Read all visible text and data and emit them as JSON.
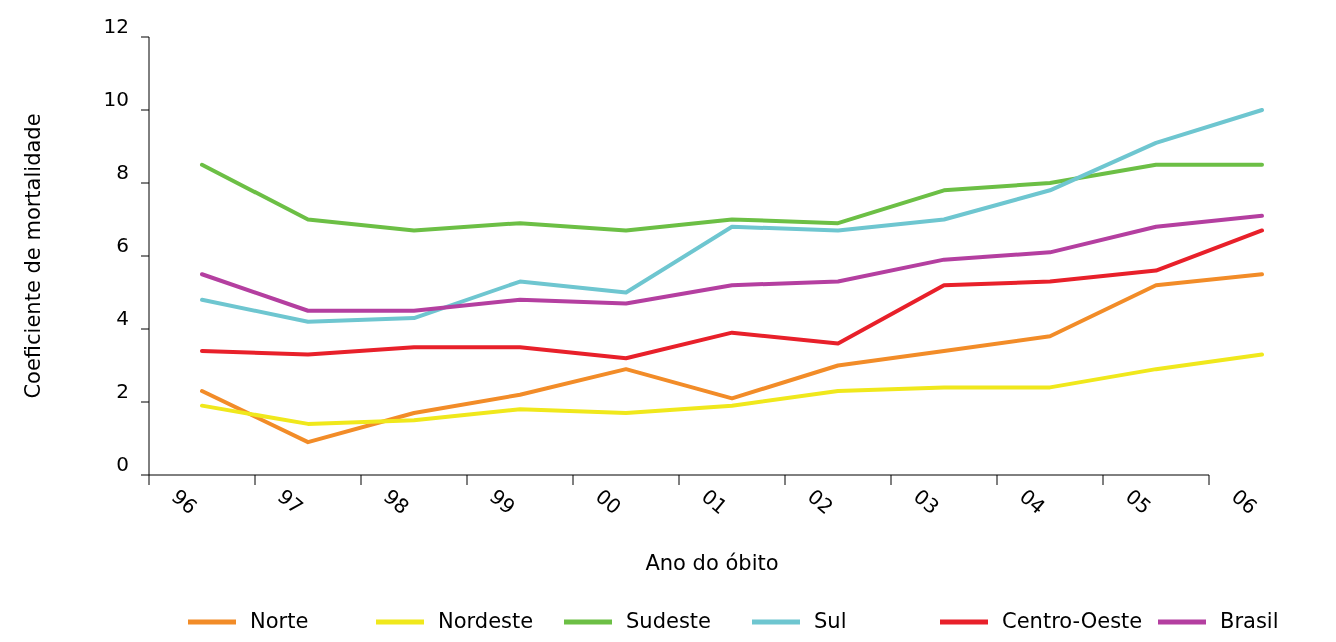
{
  "chart_data": {
    "type": "line",
    "xlabel": "Ano do óbito",
    "ylabel": "Coeficiente de mortalidade",
    "categories": [
      "96",
      "97",
      "98",
      "99",
      "00",
      "01",
      "02",
      "03",
      "04",
      "05",
      "06"
    ],
    "ylim": [
      0,
      12
    ],
    "yticks": [
      0,
      2,
      4,
      6,
      8,
      10,
      12
    ],
    "grid": false,
    "legend": "bottom",
    "marker": "none",
    "line_style": "solid",
    "series": [
      {
        "name": "Norte",
        "color": "#f28c28",
        "values": [
          2.3,
          0.9,
          1.7,
          2.2,
          2.9,
          2.1,
          3.0,
          3.4,
          3.8,
          5.2,
          5.5
        ]
      },
      {
        "name": "Nordeste",
        "color": "#f0e81c",
        "values": [
          1.9,
          1.4,
          1.5,
          1.8,
          1.7,
          1.9,
          2.3,
          2.4,
          2.4,
          2.9,
          3.3
        ]
      },
      {
        "name": "Sudeste",
        "color": "#6cbf45",
        "values": [
          8.5,
          7.0,
          6.7,
          6.9,
          6.7,
          7.0,
          6.9,
          7.8,
          8.0,
          8.5,
          8.5
        ]
      },
      {
        "name": "Sul",
        "color": "#6ec6d0",
        "values": [
          4.8,
          4.2,
          4.3,
          5.3,
          5.0,
          6.8,
          6.7,
          7.0,
          7.8,
          9.1,
          10.0
        ]
      },
      {
        "name": "Centro-Oeste",
        "color": "#e8202a",
        "values": [
          3.4,
          3.3,
          3.5,
          3.5,
          3.2,
          3.9,
          3.6,
          5.2,
          5.3,
          5.6,
          6.7
        ]
      },
      {
        "name": "Brasil",
        "color": "#b43fa0",
        "values": [
          5.5,
          4.5,
          4.5,
          4.8,
          4.7,
          5.2,
          5.3,
          5.9,
          6.1,
          6.8,
          7.1
        ]
      }
    ]
  }
}
